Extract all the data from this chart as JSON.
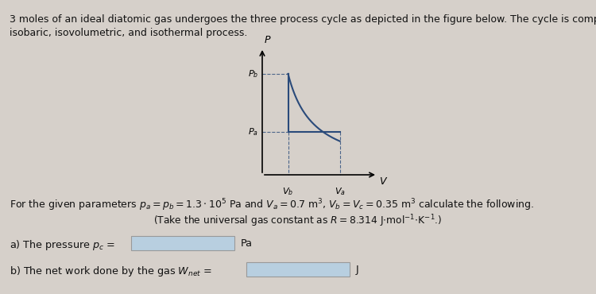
{
  "title_line1": "3 moles of an ideal diatomic gas undergoes the three process cycle as depicted in the figure below. The cycle is composed of an",
  "title_line2": "isobaric, isovolumetric, and isothermal process.",
  "param_text": "For the given parameters $p_a=p_b=1.3\\cdot10^5$ Pa and $V_a=0.7$ m$^3$, $V_b=V_c=0.35$ m$^3$ calculate the following.",
  "gas_text": "(Take the universal gas constant as $R=8.314$ J$\\cdot$mol$^{-1}$$\\cdot$K$^{-1}$.)",
  "bg_color": "#d6d0ca",
  "line_color": "#2a4a7a",
  "text_color": "#111111",
  "box_color": "#b8cfe0",
  "vb_plot": 0.7,
  "va_plot": 1.6,
  "pb_plot": 0.85,
  "pc_plot": 2.1
}
